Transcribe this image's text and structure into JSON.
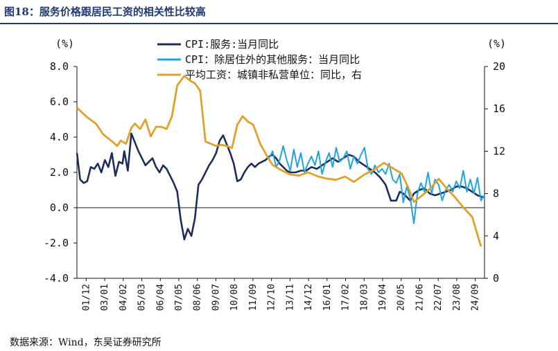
{
  "header": {
    "title": "图18：服务价格跟居民工资的相关性比较高"
  },
  "footer": {
    "source": "数据来源：Wind，东吴证券研究所"
  },
  "chart_data": {
    "type": "line",
    "left_unit": "(%)",
    "right_unit": "(%)",
    "left_ylim": [
      -4,
      8
    ],
    "left_ticks": [
      "8.0",
      "6.0",
      "4.0",
      "2.0",
      "0.0",
      "-2.0",
      "-4.0"
    ],
    "right_ylim": [
      0,
      20
    ],
    "right_ticks": [
      "20",
      "16",
      "12",
      "8",
      "4",
      "0"
    ],
    "x_ticks": [
      "01/12",
      "03/01",
      "04/02",
      "05/03",
      "06/04",
      "07/05",
      "08/06",
      "09/07",
      "10/08",
      "11/09",
      "12/10",
      "13/11",
      "14/12",
      "16/01",
      "17/02",
      "18/03",
      "19/04",
      "20/05",
      "21/06",
      "22/07",
      "23/08",
      "24/09"
    ],
    "x_range": [
      2001.92,
      2025.0
    ],
    "colors": {
      "cpi_services": "#1b2d5a",
      "cpi_other_services": "#1fa3e0",
      "avg_wage": "#e0a12c"
    },
    "series": [
      {
        "name": "CPI:服务:当月同比",
        "axis": "left",
        "x": [
          2001.92,
          2002.1,
          2002.3,
          2002.5,
          2002.7,
          2002.9,
          2003.1,
          2003.3,
          2003.5,
          2003.7,
          2003.9,
          2004.1,
          2004.3,
          2004.5,
          2004.6,
          2004.8,
          2005.0,
          2005.2,
          2005.4,
          2005.6,
          2005.8,
          2006.0,
          2006.2,
          2006.4,
          2006.6,
          2006.8,
          2007.0,
          2007.2,
          2007.4,
          2007.6,
          2007.8,
          2008.0,
          2008.2,
          2008.4,
          2008.6,
          2008.8,
          2009.0,
          2009.2,
          2009.4,
          2009.6,
          2009.8,
          2010.0,
          2010.2,
          2010.4,
          2010.6,
          2010.8,
          2011.0,
          2011.2,
          2011.4,
          2011.6,
          2011.8,
          2012.0,
          2012.2,
          2012.4,
          2012.6,
          2012.8,
          2013.0,
          2013.2,
          2013.4,
          2013.6,
          2013.8,
          2014.0,
          2014.3,
          2014.6,
          2014.9,
          2015.2,
          2015.5,
          2015.8,
          2016.1,
          2016.4,
          2016.7,
          2017.0,
          2017.3,
          2017.6,
          2017.9,
          2018.2,
          2018.5,
          2018.8,
          2019.1,
          2019.4,
          2019.7,
          2020.0,
          2020.2,
          2020.4,
          2020.6,
          2020.8,
          2021.0,
          2021.3,
          2021.6,
          2021.9,
          2022.2,
          2022.5,
          2022.8,
          2023.1,
          2023.4,
          2023.7,
          2024.0,
          2024.3,
          2024.6,
          2024.9
        ],
        "values": [
          3.1,
          1.6,
          1.4,
          1.5,
          2.3,
          2.2,
          2.5,
          2.0,
          2.7,
          2.3,
          3.1,
          1.8,
          2.6,
          2.5,
          3.2,
          2.1,
          4.2,
          3.7,
          3.2,
          2.8,
          2.4,
          2.6,
          2.8,
          2.3,
          2.0,
          2.4,
          2.2,
          1.8,
          1.4,
          0.9,
          -0.7,
          -1.8,
          -1.2,
          -1.6,
          -0.6,
          1.3,
          1.6,
          2.0,
          2.4,
          2.7,
          3.1,
          3.8,
          4.1,
          3.6,
          3.1,
          2.5,
          1.5,
          1.6,
          2.0,
          2.3,
          2.5,
          2.3,
          2.5,
          2.6,
          2.7,
          2.9,
          3.0,
          2.8,
          2.5,
          2.3,
          2.1,
          2.0,
          2.0,
          2.1,
          2.1,
          2.3,
          2.2,
          2.4,
          2.6,
          2.8,
          2.6,
          2.8,
          3.0,
          2.9,
          2.6,
          2.4,
          2.2,
          2.0,
          1.7,
          1.3,
          0.4,
          0.4,
          0.9,
          0.8,
          0.6,
          0.4,
          0.8,
          1.0,
          1.1,
          0.8,
          0.7,
          0.8,
          0.9,
          1.0,
          1.2,
          1.2,
          1.1,
          0.9,
          0.7,
          0.6
        ]
      },
      {
        "name": "CPI：除居住外的其他服务：当月同比",
        "axis": "left",
        "x": [
          2012.8,
          2013.0,
          2013.2,
          2013.4,
          2013.6,
          2013.8,
          2014.0,
          2014.2,
          2014.4,
          2014.6,
          2014.8,
          2015.0,
          2015.2,
          2015.4,
          2015.6,
          2015.8,
          2016.0,
          2016.2,
          2016.4,
          2016.6,
          2016.8,
          2017.0,
          2017.2,
          2017.4,
          2017.6,
          2017.8,
          2018.0,
          2018.2,
          2018.4,
          2018.6,
          2018.8,
          2019.0,
          2019.2,
          2019.4,
          2019.6,
          2019.8,
          2020.0,
          2020.2,
          2020.4,
          2020.6,
          2020.8,
          2021.0,
          2021.2,
          2021.4,
          2021.6,
          2021.8,
          2022.0,
          2022.2,
          2022.4,
          2022.6,
          2022.8,
          2023.0,
          2023.2,
          2023.4,
          2023.6,
          2023.8,
          2024.0,
          2024.2,
          2024.4,
          2024.6,
          2024.8,
          2025.0
        ],
        "values": [
          2.8,
          3.2,
          2.3,
          2.7,
          3.5,
          2.7,
          2.1,
          3.3,
          2.3,
          3.1,
          2.0,
          2.5,
          2.9,
          2.4,
          3.2,
          1.9,
          2.6,
          3.1,
          2.3,
          3.4,
          2.6,
          2.8,
          3.2,
          2.2,
          2.9,
          2.5,
          3.0,
          3.4,
          2.2,
          1.9,
          2.4,
          2.0,
          2.2,
          1.9,
          2.5,
          1.6,
          1.4,
          1.9,
          0.3,
          1.2,
          0.5,
          -0.9,
          0.8,
          1.4,
          0.9,
          2.0,
          0.8,
          1.6,
          1.3,
          0.4,
          1.0,
          1.3,
          0.9,
          1.5,
          1.1,
          2.1,
          0.9,
          1.6,
          0.8,
          1.7,
          0.4,
          0.7
        ]
      },
      {
        "name": "平均工资：城镇非私营单位：同比，右",
        "axis": "right",
        "x": [
          2001.92,
          2002.5,
          2003.0,
          2003.4,
          2003.7,
          2004.0,
          2004.2,
          2004.4,
          2004.7,
          2005.0,
          2005.2,
          2005.5,
          2005.8,
          2006.1,
          2006.4,
          2006.7,
          2007.0,
          2007.3,
          2007.6,
          2008.0,
          2008.3,
          2008.6,
          2008.9,
          2009.2,
          2009.5,
          2009.8,
          2010.1,
          2010.4,
          2010.7,
          2011.0,
          2011.3,
          2011.6,
          2011.9,
          2012.3,
          2012.7,
          2013.0,
          2013.5,
          2014.0,
          2014.5,
          2015.0,
          2015.6,
          2016.1,
          2016.6,
          2017.1,
          2017.6,
          2018.2,
          2018.8,
          2019.3,
          2019.9,
          2020.3,
          2020.7,
          2021.0,
          2021.6,
          2022.0,
          2022.4,
          2022.9,
          2023.3,
          2023.8,
          2024.3,
          2024.8
        ],
        "values": [
          16.1,
          15.2,
          14.6,
          13.6,
          13.2,
          12.8,
          12.5,
          13.0,
          12.7,
          14.2,
          14.6,
          14.1,
          15.0,
          13.4,
          14.3,
          14.3,
          14.1,
          15.3,
          18.2,
          19.1,
          18.7,
          18.4,
          17.7,
          12.9,
          12.7,
          12.5,
          12.6,
          12.5,
          12.3,
          14.5,
          15.3,
          14.8,
          14.5,
          12.7,
          11.5,
          10.7,
          10.2,
          9.8,
          9.7,
          10.0,
          9.6,
          9.4,
          9.3,
          9.6,
          9.1,
          9.8,
          10.3,
          10.9,
          10.3,
          9.9,
          8.5,
          7.2,
          8.0,
          8.6,
          9.4,
          8.4,
          7.7,
          6.7,
          5.8,
          3.0
        ]
      }
    ]
  }
}
